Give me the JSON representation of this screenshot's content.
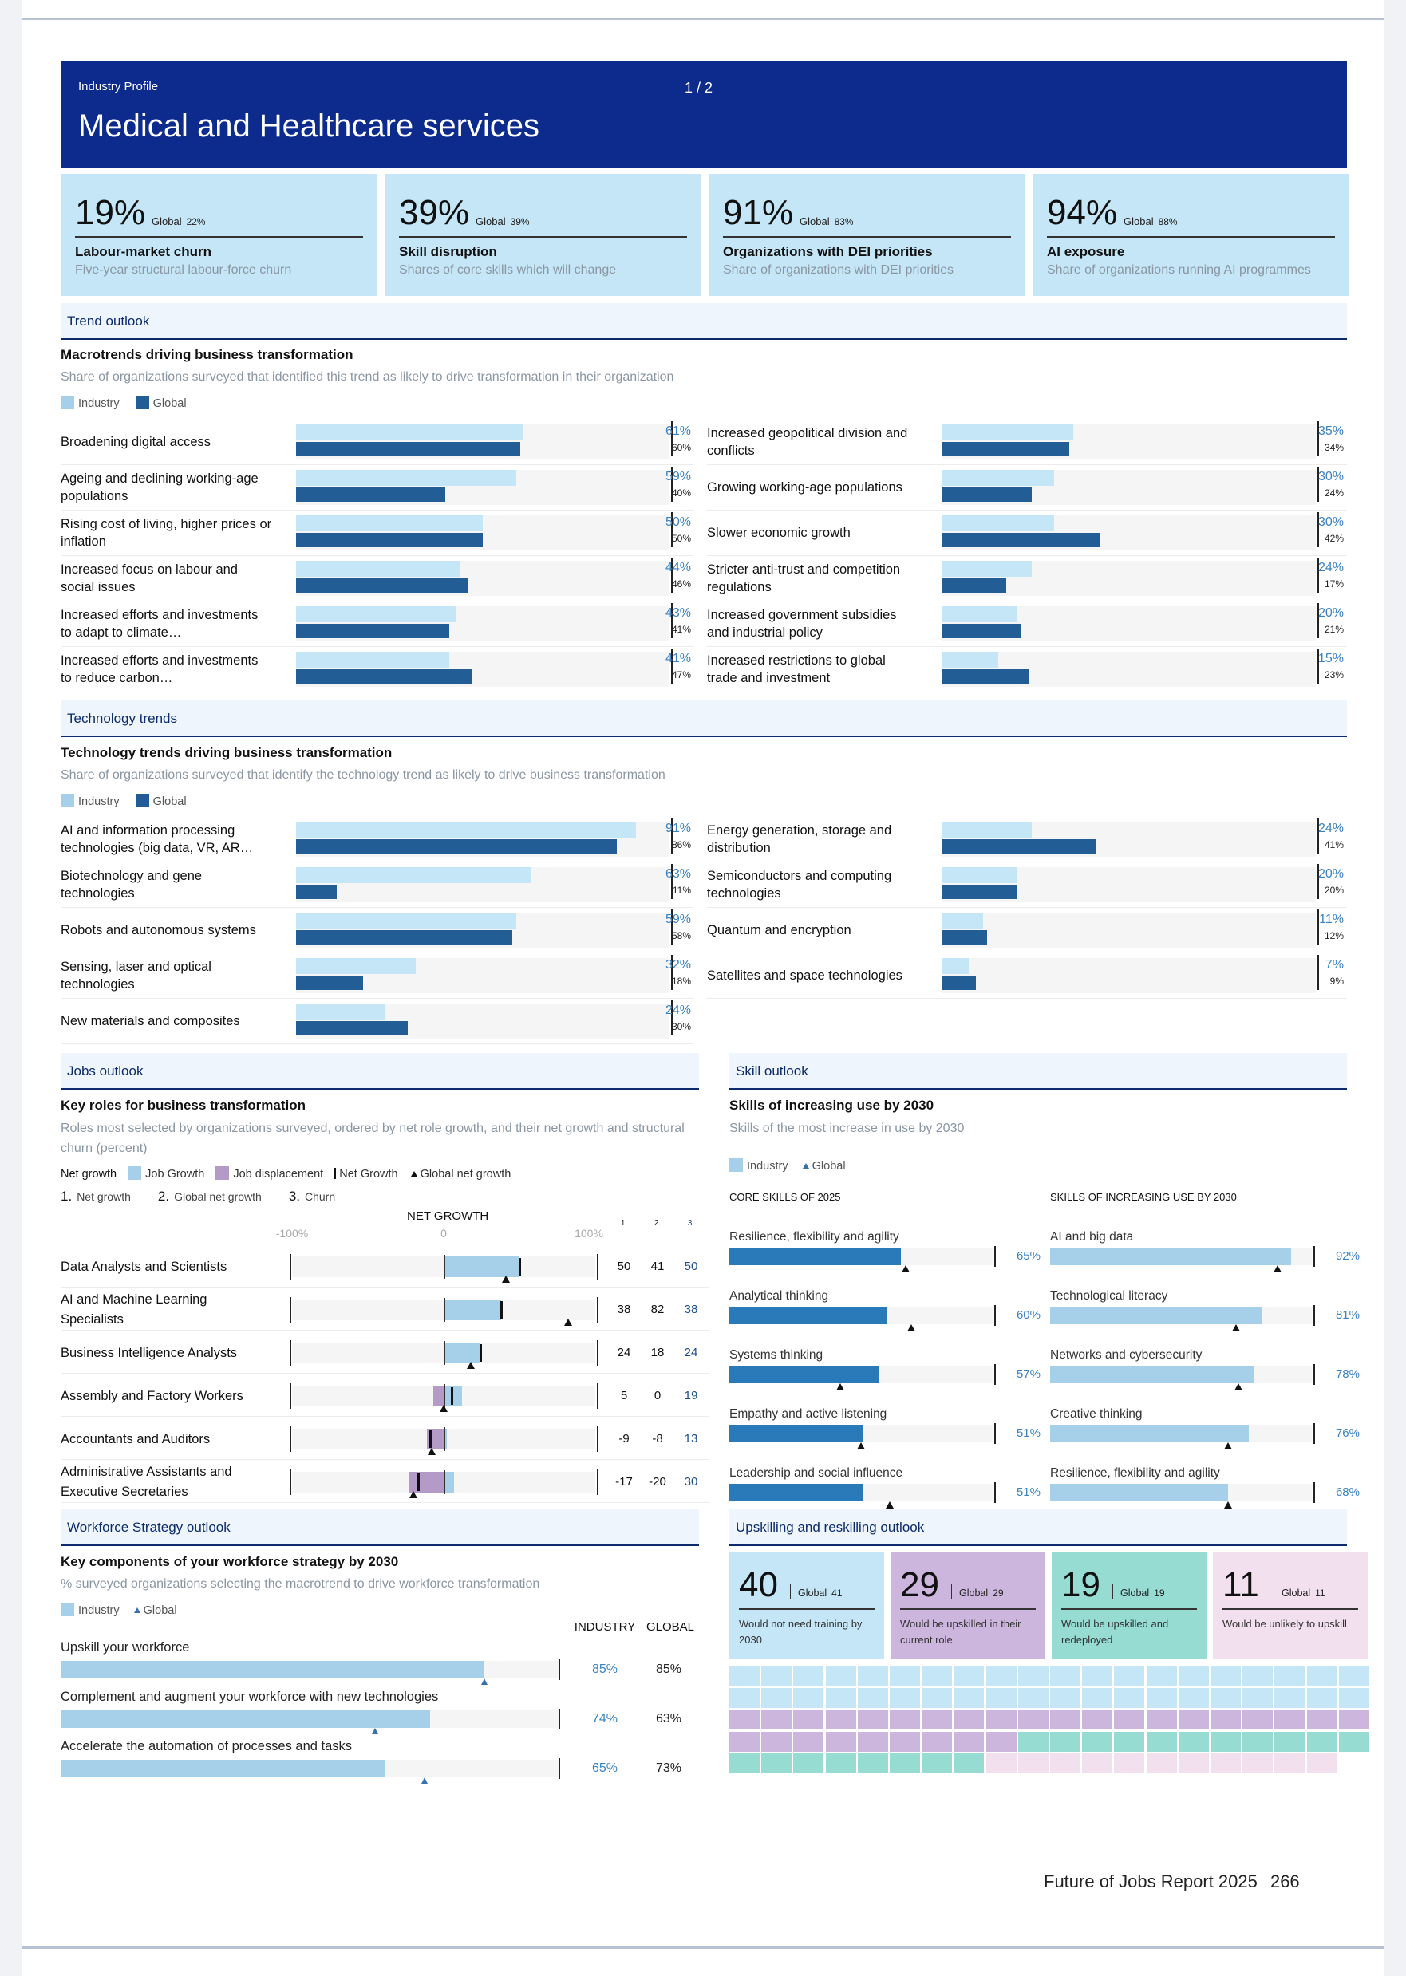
{
  "header": {
    "kicker": "Industry Profile",
    "page_indicator": "1 / 2",
    "title": "Medical and Healthcare services"
  },
  "kpis": [
    {
      "value": "19%",
      "global_label": "Global",
      "global_value": "22%",
      "label": "Labour-market churn",
      "desc": "Five-year structural labour-force churn"
    },
    {
      "value": "39%",
      "global_label": "Global",
      "global_value": "39%",
      "label": "Skill disruption",
      "desc": "Shares of core skills which will change"
    },
    {
      "value": "91%",
      "global_label": "Global",
      "global_value": "83%",
      "label": "Organizations with DEI priorities",
      "desc": "Share of organizations with DEI priorities"
    },
    {
      "value": "94%",
      "global_label": "Global",
      "global_value": "88%",
      "label": "AI exposure",
      "desc": "Share of organizations running AI programmes"
    }
  ],
  "colors": {
    "navy": "#0c2b8c",
    "light_blue": "#c5e6f7",
    "industry": "#a6d0ea",
    "global": "#235d95",
    "skill_blue": "#2a7ab9",
    "displacement": "#b49ac7",
    "teal": "#96dcd3",
    "pink": "#f3e0ef",
    "value_blue": "#3a83c2"
  },
  "legend": {
    "industry": "Industry",
    "global": "Global"
  },
  "trend": {
    "section": "Trend outlook",
    "title": "Macrotrends driving business transformation",
    "subtitle": "Share of organizations surveyed that identified this trend as likely to drive transformation in their organization",
    "left": [
      {
        "label": "Broadening digital access",
        "industry": 61,
        "global": 60,
        "industry_label": "61%",
        "global_label": "60%"
      },
      {
        "label": "Ageing and declining working-age populations",
        "industry": 59,
        "global": 40,
        "industry_label": "59%",
        "global_label": "40%"
      },
      {
        "label": "Rising cost of living, higher prices or inflation",
        "industry": 50,
        "global": 50,
        "industry_label": "50%",
        "global_label": "50%"
      },
      {
        "label": "Increased focus on labour and social issues",
        "industry": 44,
        "global": 46,
        "industry_label": "44%",
        "global_label": "46%"
      },
      {
        "label": "Increased efforts and investments to adapt to climate…",
        "industry": 43,
        "global": 41,
        "industry_label": "43%",
        "global_label": "41%"
      },
      {
        "label": "Increased efforts and investments to reduce carbon…",
        "industry": 41,
        "global": 47,
        "industry_label": "41%",
        "global_label": "47%"
      }
    ],
    "right": [
      {
        "label": "Increased geopolitical division and conflicts",
        "industry": 35,
        "global": 34,
        "industry_label": "35%",
        "global_label": "34%"
      },
      {
        "label": "Growing working-age populations",
        "industry": 30,
        "global": 24,
        "industry_label": "30%",
        "global_label": "24%"
      },
      {
        "label": "Slower economic growth",
        "industry": 30,
        "global": 42,
        "industry_label": "30%",
        "global_label": "42%"
      },
      {
        "label": "Stricter anti-trust and competition regulations",
        "industry": 24,
        "global": 17,
        "industry_label": "24%",
        "global_label": "17%"
      },
      {
        "label": "Increased government subsidies and industrial policy",
        "industry": 20,
        "global": 21,
        "industry_label": "20%",
        "global_label": "21%"
      },
      {
        "label": "Increased restrictions to global trade and investment",
        "industry": 15,
        "global": 23,
        "industry_label": "15%",
        "global_label": "23%"
      }
    ]
  },
  "tech": {
    "section": "Technology trends",
    "title": "Technology trends driving business transformation",
    "subtitle": "Share of organizations surveyed that identify the technology trend as likely to drive business transformation",
    "left": [
      {
        "label": "AI and information processing technologies (big data, VR, AR…",
        "industry": 91,
        "global": 86,
        "industry_label": "91%",
        "global_label": "86%"
      },
      {
        "label": "Biotechnology and gene technologies",
        "industry": 63,
        "global": 11,
        "industry_label": "63%",
        "global_label": "11%"
      },
      {
        "label": "Robots and autonomous systems",
        "industry": 59,
        "global": 58,
        "industry_label": "59%",
        "global_label": "58%"
      },
      {
        "label": "Sensing, laser and optical technologies",
        "industry": 32,
        "global": 18,
        "industry_label": "32%",
        "global_label": "18%"
      },
      {
        "label": "New materials and composites",
        "industry": 24,
        "global": 30,
        "industry_label": "24%",
        "global_label": "30%"
      }
    ],
    "right": [
      {
        "label": "Energy generation, storage and distribution",
        "industry": 24,
        "global": 41,
        "industry_label": "24%",
        "global_label": "41%"
      },
      {
        "label": "Semiconductors and computing technologies",
        "industry": 20,
        "global": 20,
        "industry_label": "20%",
        "global_label": "20%"
      },
      {
        "label": "Quantum and encryption",
        "industry": 11,
        "global": 12,
        "industry_label": "11%",
        "global_label": "12%"
      },
      {
        "label": "Satellites and space technologies",
        "industry": 7,
        "global": 9,
        "industry_label": "7%",
        "global_label": "9%"
      }
    ]
  },
  "jobs": {
    "section": "Jobs outlook",
    "title": "Key roles for business transformation",
    "subtitle": "Roles most selected by organizations surveyed, ordered by net role growth, and their net growth and structural churn (percent)",
    "legend": {
      "net_growth": "Net growth",
      "job_growth": "Job Growth",
      "job_displacement": "Job displacement",
      "net_growth_marker": "Net Growth",
      "global_net": "Global net growth"
    },
    "columns_legend": [
      {
        "num": "1.",
        "text": "Net growth"
      },
      {
        "num": "2.",
        "text": "Global net growth"
      },
      {
        "num": "3.",
        "text": "Churn"
      }
    ],
    "axis_title": "NET GROWTH",
    "axis_ticks": [
      "-100%",
      "0",
      "100%"
    ],
    "col_heads": [
      "1.",
      "2.",
      "3."
    ],
    "roles": [
      {
        "label": "Data Analysts and Scientists",
        "growth": 50,
        "displacement": 0,
        "net": 50,
        "global_net": 41,
        "churn": 50,
        "net_label": "50",
        "global_label": "41",
        "churn_label": "50"
      },
      {
        "label": "AI and Machine Learning Specialists",
        "growth": 38,
        "displacement": 0,
        "net": 38,
        "global_net": 82,
        "churn": 38,
        "net_label": "38",
        "global_label": "82",
        "churn_label": "38"
      },
      {
        "label": "Business Intelligence Analysts",
        "growth": 24,
        "displacement": 0,
        "net": 24,
        "global_net": 18,
        "churn": 24,
        "net_label": "24",
        "global_label": "18",
        "churn_label": "24"
      },
      {
        "label": "Assembly and Factory Workers",
        "growth": 12,
        "displacement": 7,
        "net": 5,
        "global_net": 0,
        "churn": 19,
        "net_label": "5",
        "global_label": "0",
        "churn_label": "19"
      },
      {
        "label": "Accountants and Auditors",
        "growth": 2,
        "displacement": 11,
        "net": -9,
        "global_net": -8,
        "churn": 13,
        "net_label": "-9",
        "global_label": "-8",
        "churn_label": "13"
      },
      {
        "label": "Administrative Assistants and Executive Secretaries",
        "growth": 7,
        "displacement": 23,
        "net": -17,
        "global_net": -20,
        "churn": 30,
        "net_label": "-17",
        "global_label": "-20",
        "churn_label": "30"
      }
    ]
  },
  "skills": {
    "section": "Skill outlook",
    "title": "Skills of increasing use by 2030",
    "subtitle": "Skills of the most increase in use by 2030",
    "legend": {
      "industry": "Industry",
      "global": "Global"
    },
    "core_head": "CORE SKILLS OF 2025",
    "inc_head": "SKILLS OF INCREASING USE BY 2030",
    "core": [
      {
        "label": "Resilience, flexibility and agility",
        "value": 65,
        "global": 67,
        "value_label": "65%"
      },
      {
        "label": "Analytical thinking",
        "value": 60,
        "global": 69,
        "value_label": "60%"
      },
      {
        "label": "Systems thinking",
        "value": 57,
        "global": 42,
        "value_label": "57%"
      },
      {
        "label": "Empathy and active listening",
        "value": 51,
        "global": 50,
        "value_label": "51%"
      },
      {
        "label": "Leadership and social influence",
        "value": 51,
        "global": 61,
        "value_label": "51%"
      }
    ],
    "increasing": [
      {
        "label": "AI and big data",
        "value": 92,
        "global": 87,
        "value_label": "92%"
      },
      {
        "label": "Technological literacy",
        "value": 81,
        "global": 71,
        "value_label": "81%"
      },
      {
        "label": "Networks and cybersecurity",
        "value": 78,
        "global": 72,
        "value_label": "78%"
      },
      {
        "label": "Creative thinking",
        "value": 76,
        "global": 68,
        "value_label": "76%"
      },
      {
        "label": "Resilience, flexibility and agility",
        "value": 68,
        "global": 68,
        "value_label": "68%"
      }
    ]
  },
  "workforce": {
    "section": "Workforce Strategy outlook",
    "title": "Key components of your workforce strategy by 2030",
    "subtitle": "% surveyed organizations selecting the macrotrend to drive workforce transformation",
    "legend": {
      "industry": "Industry",
      "global": "Global"
    },
    "col_industry": "INDUSTRY",
    "col_global": "GLOBAL",
    "rows": [
      {
        "label": "Upskill your workforce",
        "industry": 85,
        "global": 85,
        "industry_label": "85%",
        "global_label": "85%"
      },
      {
        "label": "Complement and augment your workforce with new technologies",
        "industry": 74,
        "global": 63,
        "industry_label": "74%",
        "global_label": "63%"
      },
      {
        "label": "Accelerate the automation of processes and tasks",
        "industry": 65,
        "global": 73,
        "industry_label": "65%",
        "global_label": "73%"
      }
    ]
  },
  "upskilling": {
    "section": "Upskilling and reskilling outlook",
    "cards": [
      {
        "value": "40",
        "global_label": "Global",
        "global_value": "41",
        "desc": "Would not need training by 2030",
        "count": 40,
        "color": "#c5e6f7"
      },
      {
        "value": "29",
        "global_label": "Global",
        "global_value": "29",
        "desc": "Would be upskilled in their current role",
        "count": 29,
        "color": "#cdb6dd"
      },
      {
        "value": "19",
        "global_label": "Global",
        "global_value": "19",
        "desc": "Would be upskilled and redeployed",
        "count": 19,
        "color": "#96dcd3"
      },
      {
        "value": "11",
        "global_label": "Global",
        "global_value": "11",
        "desc": "Would be unlikely to upskill",
        "count": 11,
        "color": "#f3e0ef"
      }
    ]
  },
  "footer": {
    "report": "Future of Jobs Report 2025",
    "page": "266"
  }
}
